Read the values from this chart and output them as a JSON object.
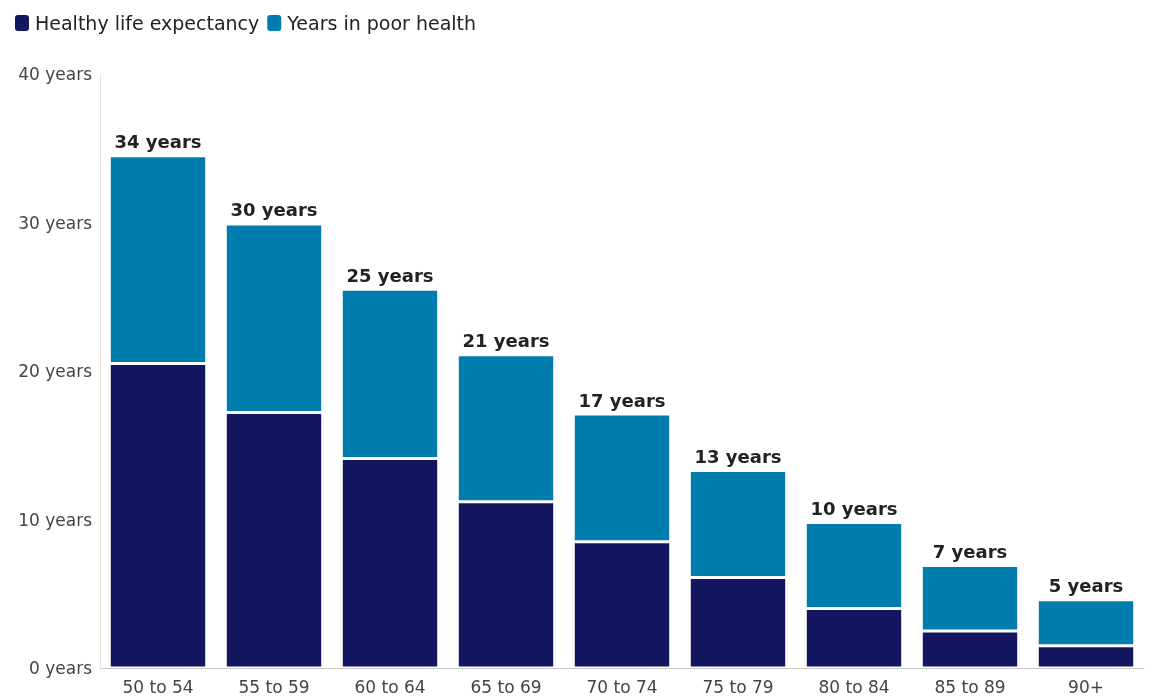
{
  "chart_data": {
    "type": "bar",
    "stacked": true,
    "categories": [
      "50 to 54",
      "55 to 59",
      "60 to 64",
      "65 to 69",
      "70 to 74",
      "75 to 79",
      "80 to 84",
      "85 to 89",
      "90+"
    ],
    "series": [
      {
        "name": "Healthy life expectancy",
        "color": "#141760",
        "values": [
          20.5,
          17.2,
          14.1,
          11.2,
          8.5,
          6.1,
          4.0,
          2.5,
          1.5
        ]
      },
      {
        "name": "Years in poor health",
        "color": "#007cad",
        "values": [
          14.0,
          12.7,
          11.4,
          9.9,
          8.6,
          7.2,
          5.8,
          4.4,
          3.1
        ]
      }
    ],
    "ylim": [
      0,
      40
    ],
    "yticks": [
      {
        "value": 0,
        "label": "0 years"
      },
      {
        "value": 10,
        "label": "10 years"
      },
      {
        "value": 20,
        "label": "20 years"
      },
      {
        "value": 30,
        "label": "30 years"
      },
      {
        "value": 40,
        "label": "40 years"
      }
    ],
    "totals": [
      "34 years",
      "30 years",
      "25 years",
      "21 years",
      "17 years",
      "13 years",
      "10 years",
      "7 years",
      "5 years"
    ],
    "grid": false,
    "legend": "top left"
  }
}
